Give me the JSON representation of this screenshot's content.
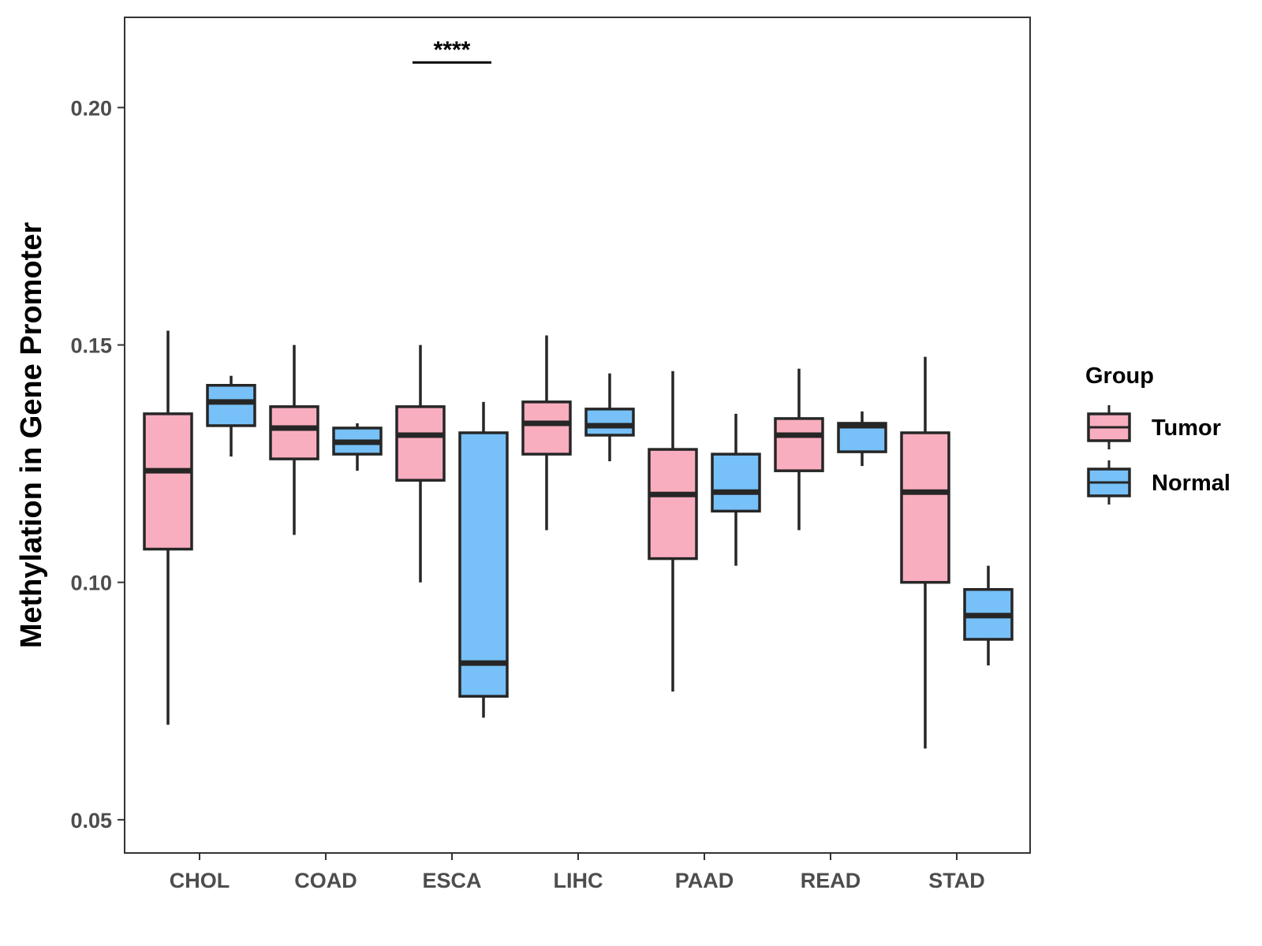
{
  "chart_data": {
    "type": "boxplot",
    "title": "",
    "xlabel": "",
    "ylabel": "Methylation in Gene Promoter",
    "ylim": [
      0.043,
      0.219
    ],
    "yticks": [
      0.05,
      0.1,
      0.15,
      0.2
    ],
    "ytick_labels": [
      "0.05",
      "0.10",
      "0.15",
      "0.20"
    ],
    "categories": [
      "CHOL",
      "COAD",
      "ESCA",
      "LIHC",
      "PAAD",
      "READ",
      "STAD"
    ],
    "legend": {
      "title": "Group",
      "position": "right",
      "entries": [
        {
          "name": "Tumor",
          "color": "#F9AEBF"
        },
        {
          "name": "Normal",
          "color": "#77C1F8"
        }
      ]
    },
    "series": [
      {
        "name": "Tumor",
        "color": "#F9AEBF",
        "boxes": [
          {
            "category": "CHOL",
            "min": 0.07,
            "q1": 0.107,
            "median": 0.1235,
            "q3": 0.1355,
            "max": 0.153
          },
          {
            "category": "COAD",
            "min": 0.11,
            "q1": 0.126,
            "median": 0.1325,
            "q3": 0.137,
            "max": 0.15
          },
          {
            "category": "ESCA",
            "min": 0.1,
            "q1": 0.1215,
            "median": 0.131,
            "q3": 0.137,
            "max": 0.15
          },
          {
            "category": "LIHC",
            "min": 0.111,
            "q1": 0.127,
            "median": 0.1335,
            "q3": 0.138,
            "max": 0.152
          },
          {
            "category": "PAAD",
            "min": 0.077,
            "q1": 0.105,
            "median": 0.1185,
            "q3": 0.128,
            "max": 0.1445
          },
          {
            "category": "READ",
            "min": 0.111,
            "q1": 0.1235,
            "median": 0.131,
            "q3": 0.1345,
            "max": 0.145
          },
          {
            "category": "STAD",
            "min": 0.065,
            "q1": 0.1,
            "median": 0.119,
            "q3": 0.1315,
            "max": 0.1475
          }
        ]
      },
      {
        "name": "Normal",
        "color": "#77C1F8",
        "boxes": [
          {
            "category": "CHOL",
            "min": 0.1265,
            "q1": 0.133,
            "median": 0.138,
            "q3": 0.1415,
            "max": 0.1435
          },
          {
            "category": "COAD",
            "min": 0.1235,
            "q1": 0.127,
            "median": 0.1295,
            "q3": 0.1325,
            "max": 0.1335
          },
          {
            "category": "ESCA",
            "min": 0.0715,
            "q1": 0.076,
            "median": 0.083,
            "q3": 0.1315,
            "max": 0.138
          },
          {
            "category": "LIHC",
            "min": 0.1255,
            "q1": 0.131,
            "median": 0.133,
            "q3": 0.1365,
            "max": 0.144
          },
          {
            "category": "PAAD",
            "min": 0.1035,
            "q1": 0.115,
            "median": 0.119,
            "q3": 0.127,
            "max": 0.1355
          },
          {
            "category": "READ",
            "min": 0.1245,
            "q1": 0.1275,
            "median": 0.133,
            "q3": 0.1335,
            "max": 0.136
          },
          {
            "category": "STAD",
            "min": 0.0825,
            "q1": 0.088,
            "median": 0.093,
            "q3": 0.0985,
            "max": 0.1035
          }
        ]
      }
    ],
    "annotations": [
      {
        "category": "ESCA",
        "text": "****",
        "y": 0.2095
      }
    ]
  }
}
